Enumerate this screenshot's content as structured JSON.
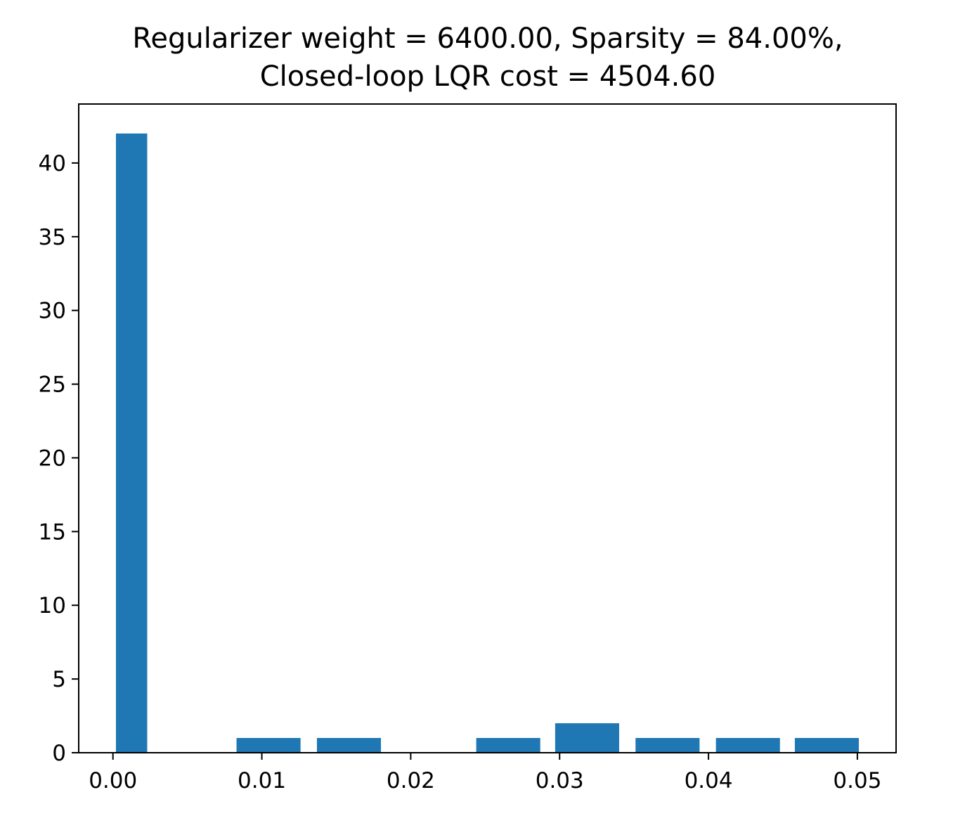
{
  "chart_data": {
    "type": "bar",
    "title_lines": [
      "Regularizer weight = 6400.00, Sparsity = 84.00%,",
      "Closed-loop LQR cost = 4504.60"
    ],
    "xlabel": "",
    "ylabel": "",
    "xlim": [
      -0.0023,
      0.0526
    ],
    "ylim": [
      0,
      44
    ],
    "bar_color": "#1f77b4",
    "x_ticks": [
      "0.00",
      "0.01",
      "0.02",
      "0.03",
      "0.04",
      "0.05"
    ],
    "y_ticks": [
      "0",
      "5",
      "10",
      "15",
      "20",
      "25",
      "30",
      "35",
      "40"
    ],
    "bars": [
      {
        "x0": 0.0002,
        "x1": 0.0023,
        "value": 42
      },
      {
        "x0": 0.0083,
        "x1": 0.0126,
        "value": 1
      },
      {
        "x0": 0.0137,
        "x1": 0.018,
        "value": 1
      },
      {
        "x0": 0.0244,
        "x1": 0.0287,
        "value": 1
      },
      {
        "x0": 0.0297,
        "x1": 0.034,
        "value": 2
      },
      {
        "x0": 0.0351,
        "x1": 0.0394,
        "value": 1
      },
      {
        "x0": 0.0405,
        "x1": 0.0448,
        "value": 1
      },
      {
        "x0": 0.0458,
        "x1": 0.0501,
        "value": 1
      }
    ],
    "grid": false,
    "legend": "none"
  }
}
